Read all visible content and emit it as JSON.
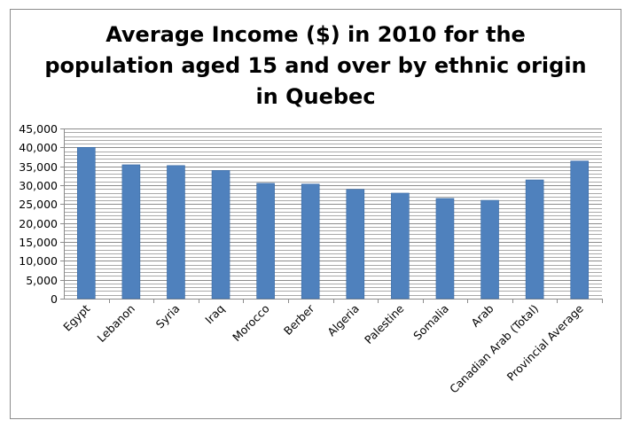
{
  "chart_data": {
    "type": "bar",
    "title_lines": [
      "Average Income ($) in 2010 for the",
      "population aged 15 and over by ethnic origin",
      "in Quebec"
    ],
    "categories": [
      "Egypt",
      "Lebanon",
      "Syria",
      "Iraq",
      "Morocco",
      "Berber",
      "Algeria",
      "Palestine",
      "Somalia",
      "Arab",
      "Canadian Arab (Total)",
      "Provincial Average"
    ],
    "values": [
      40000,
      35400,
      35200,
      33900,
      30500,
      30300,
      28900,
      27900,
      26500,
      26000,
      31400,
      36400
    ],
    "ylim": [
      0,
      45000
    ],
    "yticks": [
      "0",
      "5,000",
      "10,000",
      "15,000",
      "20,000",
      "25,000",
      "30,000",
      "35,000",
      "40,000",
      "45,000"
    ],
    "ytick_values": [
      0,
      5000,
      10000,
      15000,
      20000,
      25000,
      30000,
      35000,
      40000,
      45000
    ],
    "minor_grid_step": 1000,
    "grid": true,
    "legend": "none",
    "colors": {
      "bar": "#4f81bd",
      "bar_edge": "#3a6aa3",
      "grid": "#8c8c8c",
      "axis": "#8c8c8c"
    }
  }
}
